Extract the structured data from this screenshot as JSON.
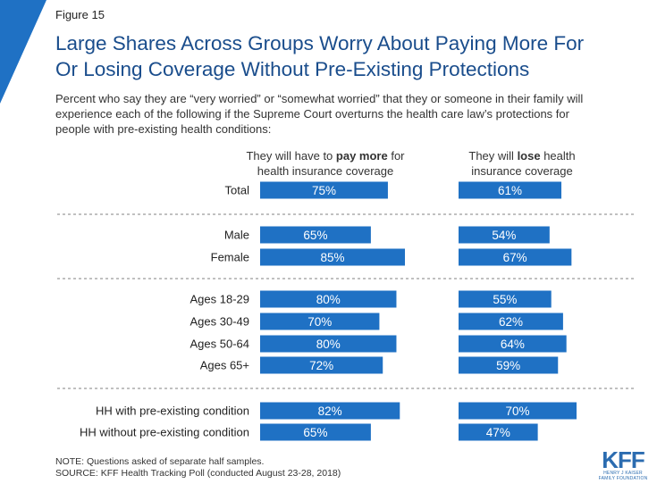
{
  "figure_label": "Figure 15",
  "title_lines": [
    "Large Shares Across Groups Worry About Paying More For",
    "Or Losing Coverage Without Pre-Existing Protections"
  ],
  "subtitle_lines": [
    "Percent who say they are “very worried” or “somewhat worried” that they or someone in their family will",
    "experience each of the following if the Supreme Court overturns the health care law’s protections for",
    "people with pre-existing health conditions:"
  ],
  "columns": {
    "pay": {
      "line1_pre": "They will have to ",
      "line1_bold": "pay more",
      "line1_post": " for",
      "line2": "health insurance coverage"
    },
    "lose": {
      "line1_pre": "They will ",
      "line1_bold": "lose",
      "line1_post": " health",
      "line2": "insurance coverage"
    }
  },
  "colors": {
    "bar": "#1f71c4",
    "bar_text": "#ffffff",
    "title": "#1a4d8c",
    "accent": "#1f71c4",
    "divider": "#808080"
  },
  "chart_data": {
    "type": "bar",
    "orientation": "horizontal",
    "value_suffix": "%",
    "xlim": [
      0,
      100
    ],
    "categories": [
      "Total",
      "Male",
      "Female",
      "Ages 18-29",
      "Ages 30-49",
      "Ages 50-64",
      "Ages 65+",
      "HH with pre-existing condition",
      "HH without pre-existing condition"
    ],
    "groups": [
      [
        0
      ],
      [
        1,
        2
      ],
      [
        3,
        4,
        5,
        6
      ],
      [
        7,
        8
      ]
    ],
    "series": [
      {
        "name": "They will have to pay more for health insurance coverage",
        "values": [
          75,
          65,
          85,
          80,
          70,
          80,
          72,
          82,
          65
        ]
      },
      {
        "name": "They will lose health insurance coverage",
        "values": [
          61,
          54,
          67,
          55,
          62,
          64,
          59,
          70,
          47
        ]
      }
    ]
  },
  "notes": [
    "NOTE: Questions asked of separate half samples.",
    "SOURCE: KFF Health Tracking Poll (conducted August 23-28, 2018)"
  ],
  "logo": {
    "mark": "KFF",
    "sub_lines": [
      "HENRY J KAISER",
      "FAMILY FOUNDATION"
    ]
  }
}
